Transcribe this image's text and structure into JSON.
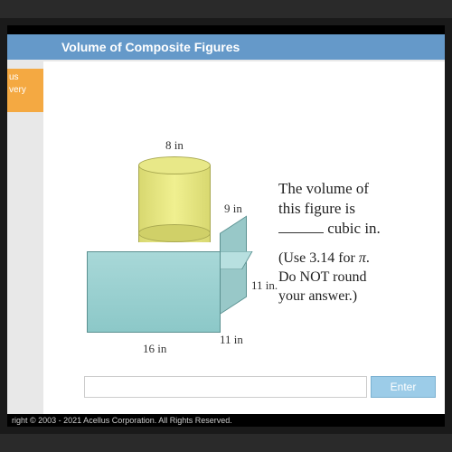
{
  "title": "Volume of Composite Figures",
  "sidebar": {
    "line1": "us",
    "line2": "very"
  },
  "dimensions": {
    "cyl_diameter": "8 in",
    "cyl_height": "9 in",
    "prism_depth": "11 in.",
    "prism_height": "11 in",
    "prism_width": "16 in"
  },
  "question": {
    "line1": "The volume of",
    "line2": "this figure is",
    "unit": " cubic in.",
    "hint1": "(Use 3.14 for ",
    "pi": "π",
    "hint1_end": ".",
    "hint2": "Do NOT round",
    "hint3": "your answer.)"
  },
  "input": {
    "placeholder": ""
  },
  "enter_label": "Enter",
  "copyright": "right © 2003 - 2021 Acellus Corporation. All Rights Reserved."
}
